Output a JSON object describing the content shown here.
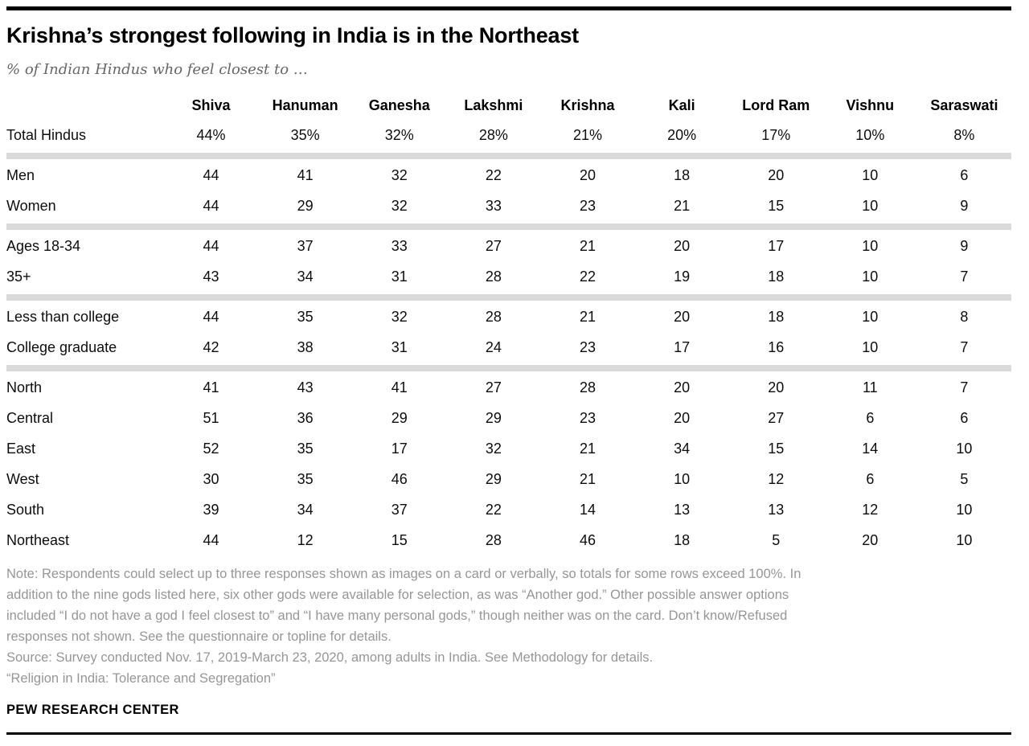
{
  "page": {
    "title": "Krishna’s strongest following in India is in the Northeast",
    "subtitle": "% of Indian Hindus who feel closest to …",
    "footer_brand": "PEW RESEARCH CENTER"
  },
  "colors": {
    "rule_black": "#000000",
    "title_text": "#000000",
    "subtitle_gray": "#666666",
    "table_text": "#0d0d0d",
    "note_gray": "#969696",
    "separator_gray": "#d9d9d9",
    "background": "#ffffff"
  },
  "chart_data": {
    "type": "table",
    "title": "Krishna’s strongest following in India is in the Northeast",
    "subtitle": "% of Indian Hindus who feel closest to …",
    "columns": [
      "Shiva",
      "Hanuman",
      "Ganesha",
      "Lakshmi",
      "Krishna",
      "Kali",
      "Lord Ram",
      "Vishnu",
      "Saraswati"
    ],
    "sections": [
      {
        "group": "total",
        "rows": [
          {
            "label": "Total Hindus",
            "values": [
              "44%",
              "35%",
              "32%",
              "28%",
              "21%",
              "20%",
              "17%",
              "10%",
              "8%"
            ]
          }
        ]
      },
      {
        "group": "gender",
        "rows": [
          {
            "label": "Men",
            "values": [
              "44",
              "41",
              "32",
              "22",
              "20",
              "18",
              "20",
              "10",
              "6"
            ]
          },
          {
            "label": "Women",
            "values": [
              "44",
              "29",
              "32",
              "33",
              "23",
              "21",
              "15",
              "10",
              "9"
            ]
          }
        ]
      },
      {
        "group": "age",
        "rows": [
          {
            "label": "Ages 18-34",
            "values": [
              "44",
              "37",
              "33",
              "27",
              "21",
              "20",
              "17",
              "10",
              "9"
            ]
          },
          {
            "label": "35+",
            "values": [
              "43",
              "34",
              "31",
              "28",
              "22",
              "19",
              "18",
              "10",
              "7"
            ]
          }
        ]
      },
      {
        "group": "education",
        "rows": [
          {
            "label": "Less than college",
            "values": [
              "44",
              "35",
              "32",
              "28",
              "21",
              "20",
              "18",
              "10",
              "8"
            ]
          },
          {
            "label": "College graduate",
            "values": [
              "42",
              "38",
              "31",
              "24",
              "23",
              "17",
              "16",
              "10",
              "7"
            ]
          }
        ]
      },
      {
        "group": "region",
        "rows": [
          {
            "label": "North",
            "values": [
              "41",
              "43",
              "41",
              "27",
              "28",
              "20",
              "20",
              "11",
              "7"
            ]
          },
          {
            "label": "Central",
            "values": [
              "51",
              "36",
              "29",
              "29",
              "23",
              "20",
              "27",
              "6",
              "6"
            ]
          },
          {
            "label": "East",
            "values": [
              "52",
              "35",
              "17",
              "32",
              "21",
              "34",
              "15",
              "14",
              "10"
            ]
          },
          {
            "label": "West",
            "values": [
              "30",
              "35",
              "46",
              "29",
              "21",
              "10",
              "12",
              "6",
              "5"
            ]
          },
          {
            "label": "South",
            "values": [
              "39",
              "34",
              "37",
              "22",
              "14",
              "13",
              "13",
              "12",
              "10"
            ]
          },
          {
            "label": "Northeast",
            "values": [
              "44",
              "12",
              "15",
              "28",
              "46",
              "18",
              "5",
              "20",
              "10"
            ]
          }
        ]
      }
    ]
  },
  "notes": {
    "note_lines": [
      "Note: Respondents could select up to three responses shown as images on a card or verbally, so totals for some rows exceed 100%. In",
      "addition to the nine gods listed here, six other gods were available for selection, as was “Another god.” Other possible answer options",
      "included “I do not have a god I feel closest to” and “I have many personal gods,” though neither was on the card. Don’t know/Refused",
      "responses not shown. See the questionnaire or topline for details."
    ],
    "source": "Source: Survey conducted Nov. 17, 2019-March 23, 2020, among adults in India. See Methodology for details.",
    "citation": "“Religion in India: Tolerance and Segregation”"
  }
}
